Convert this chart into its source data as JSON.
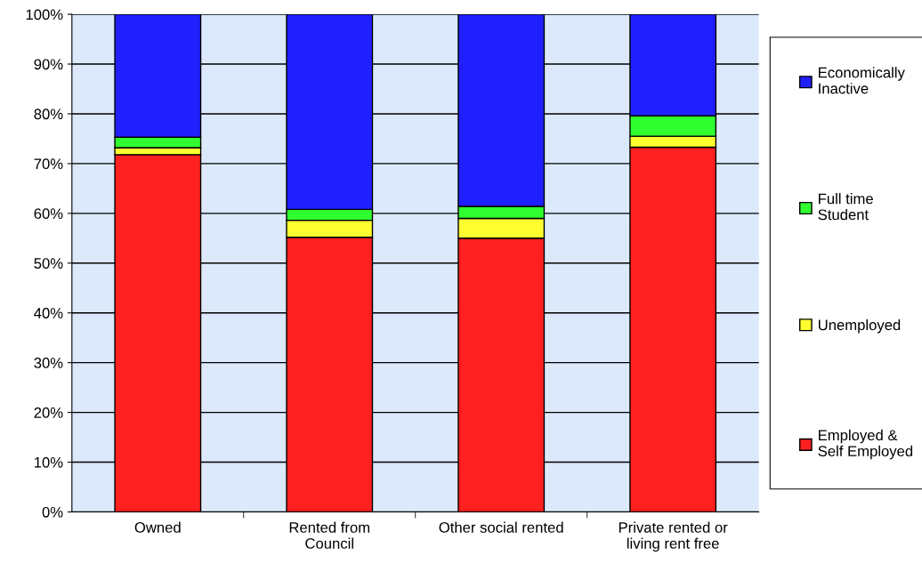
{
  "chart_data": {
    "type": "bar",
    "stacked": true,
    "categories": [
      "Owned",
      "Rented from\nCouncil",
      "Other social rented",
      "Private rented or\nliving rent free"
    ],
    "series": [
      {
        "name": "Employed &\nSelf Employed",
        "color": "#ff2020",
        "values": [
          71.8,
          55.2,
          55.0,
          73.3
        ]
      },
      {
        "name": "Unemployed",
        "color": "#ffff30",
        "values": [
          1.4,
          3.4,
          4.0,
          2.2
        ]
      },
      {
        "name": "Full time\nStudent",
        "color": "#30ff30",
        "values": [
          2.1,
          2.2,
          2.4,
          4.1
        ]
      },
      {
        "name": "Economically\nInactive",
        "color": "#2020ff",
        "values": [
          24.7,
          39.2,
          38.6,
          20.4
        ]
      }
    ],
    "ylim": [
      0,
      100
    ],
    "yticks": [
      {
        "value": 0,
        "label": "0%"
      },
      {
        "value": 10,
        "label": "10%"
      },
      {
        "value": 20,
        "label": "20%"
      },
      {
        "value": 30,
        "label": "30%"
      },
      {
        "value": 40,
        "label": "40%"
      },
      {
        "value": 50,
        "label": "50%"
      },
      {
        "value": 60,
        "label": "60%"
      },
      {
        "value": 70,
        "label": "70%"
      },
      {
        "value": 80,
        "label": "80%"
      },
      {
        "value": 90,
        "label": "90%"
      },
      {
        "value": 100,
        "label": "100%"
      }
    ],
    "grid": "y",
    "legend": "right"
  }
}
